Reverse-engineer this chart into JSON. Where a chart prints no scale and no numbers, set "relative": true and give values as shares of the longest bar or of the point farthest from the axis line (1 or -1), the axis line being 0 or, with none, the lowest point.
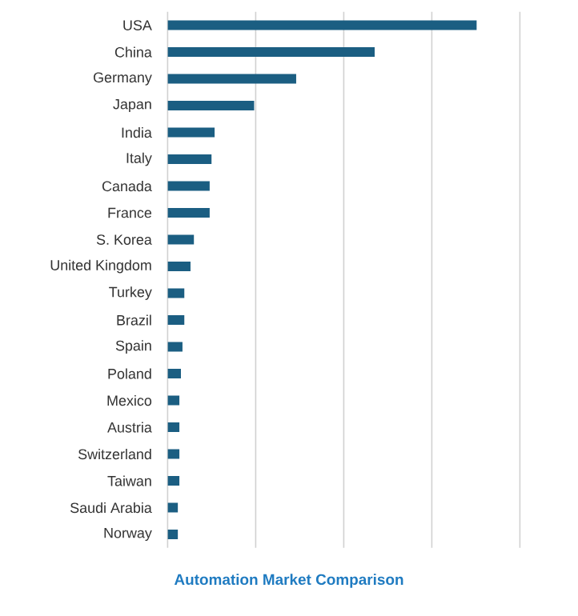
{
  "chart_data": {
    "type": "bar",
    "orientation": "horizontal",
    "relative": true,
    "title": "Automation Market Comparison",
    "categories": [
      "USA",
      "China",
      "Germany",
      "Japan",
      "India",
      "Italy",
      "Canada",
      "France",
      "S. Korea",
      "United Kingdom",
      "Turkey",
      "Brazil",
      "Spain",
      "Poland",
      "Mexico",
      "Austria",
      "Switzerland",
      "Taiwan",
      "Saudi Arabia",
      "Norway"
    ],
    "values": [
      1,
      0.67,
      0.416,
      0.28,
      0.152,
      0.142,
      0.136,
      0.136,
      0.085,
      0.074,
      0.054,
      0.054,
      0.048,
      0.043,
      0.038,
      0.038,
      0.038,
      0.038,
      0.033,
      0.033
    ],
    "color": "#1b5e82",
    "grid": "x"
  }
}
